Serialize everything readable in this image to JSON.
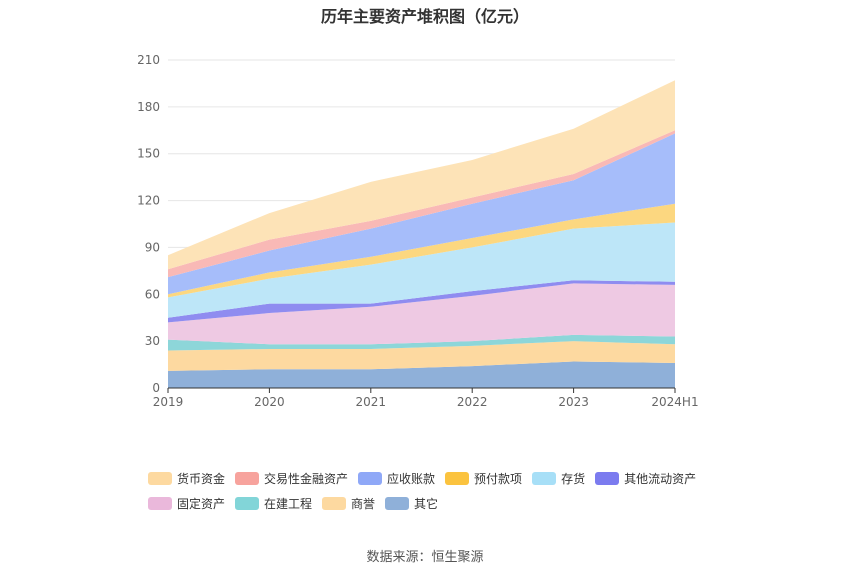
{
  "chart_data": {
    "type": "area",
    "stacked": true,
    "title": "历年主要资产堆积图（亿元）",
    "categories": [
      "2019",
      "2020",
      "2021",
      "2022",
      "2023",
      "2024H1"
    ],
    "ylim": [
      0,
      210
    ],
    "yticks": [
      0,
      30,
      60,
      90,
      120,
      150,
      180,
      210
    ],
    "grid": true,
    "legend_position": "bottom",
    "series": [
      {
        "name": "其它",
        "color": "#8fb0d9",
        "values": [
          11,
          12,
          12,
          14,
          17,
          16
        ]
      },
      {
        "name": "商誉",
        "color": "#fdd9a0",
        "values": [
          13,
          13,
          13,
          13,
          13,
          12
        ]
      },
      {
        "name": "在建工程",
        "color": "#8dd6d9",
        "values": [
          7,
          3,
          3,
          3,
          4,
          5
        ]
      },
      {
        "name": "固定资产",
        "color": "#eec9e3",
        "values": [
          11,
          20,
          24,
          29,
          33,
          33
        ]
      },
      {
        "name": "其他流动资产",
        "color": "#8f8cf0",
        "values": [
          3,
          6,
          2,
          3,
          2,
          2
        ]
      },
      {
        "name": "存货",
        "color": "#bde6f8",
        "values": [
          13,
          16,
          25,
          28,
          33,
          38
        ]
      },
      {
        "name": "预付款项",
        "color": "#fcd780",
        "values": [
          2,
          4,
          5,
          6,
          6,
          12
        ]
      },
      {
        "name": "应收账款",
        "color": "#a6bdfa",
        "values": [
          11,
          14,
          18,
          22,
          25,
          45
        ]
      },
      {
        "name": "交易性金融资产",
        "color": "#f9b9b6",
        "values": [
          5,
          7,
          5,
          4,
          4,
          2
        ]
      },
      {
        "name": "货币资金",
        "color": "#fde3b7",
        "values": [
          9,
          17,
          25,
          24,
          29,
          32
        ]
      }
    ]
  },
  "legend": {
    "items": [
      {
        "label": "货币资金",
        "color": "#fdd9a0"
      },
      {
        "label": "交易性金融资产",
        "color": "#f7a39d"
      },
      {
        "label": "应收账款",
        "color": "#8fa8f7"
      },
      {
        "label": "预付款项",
        "color": "#fbc33f"
      },
      {
        "label": "存货",
        "color": "#a7dff7"
      },
      {
        "label": "其他流动资产",
        "color": "#7b7bef"
      },
      {
        "label": "固定资产",
        "color": "#eab8db"
      },
      {
        "label": "在建工程",
        "color": "#82d5d8"
      },
      {
        "label": "商誉",
        "color": "#fdd9a0"
      },
      {
        "label": "其它",
        "color": "#8fb0d9"
      }
    ]
  },
  "source": "数据来源：恒生聚源"
}
